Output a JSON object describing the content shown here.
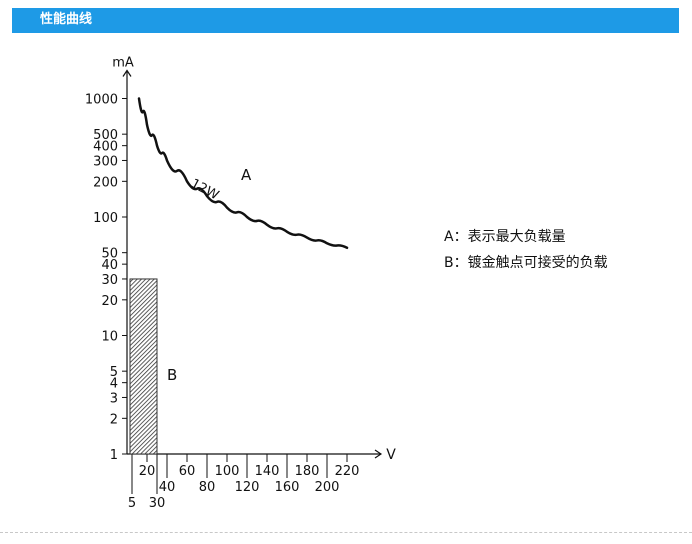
{
  "header": {
    "title": "性能曲线",
    "color": "#1e9ae6"
  },
  "legend": {
    "a": "A：表示最大负载量",
    "b": "B：镀金触点可接受的负载"
  },
  "chart_data": {
    "type": "line",
    "title": "",
    "xlabel": "V",
    "ylabel": "mA",
    "y_scale": "log",
    "ylim": [
      1,
      1000
    ],
    "xlim": [
      0,
      220
    ],
    "y_ticks": [
      1,
      2,
      3,
      4,
      5,
      10,
      20,
      30,
      40,
      50,
      100,
      200,
      300,
      400,
      500,
      1000
    ],
    "x_ticks_row1": [
      20,
      60,
      100,
      140,
      180,
      220
    ],
    "x_ticks_row2": [
      40,
      80,
      120,
      160,
      200
    ],
    "x_ticks_row3": [
      5,
      30
    ],
    "grid": false,
    "series": [
      {
        "name": "12W",
        "label": "A",
        "x": [
          12,
          20,
          30,
          40,
          60,
          80,
          100,
          120,
          140,
          160,
          180,
          200,
          220
        ],
        "y": [
          1000,
          600,
          400,
          300,
          200,
          150,
          120,
          100,
          86,
          75,
          67,
          60,
          55
        ]
      }
    ],
    "region": {
      "label": "B",
      "x": [
        5,
        30
      ],
      "y": [
        1,
        30
      ],
      "pattern": "hatched"
    }
  }
}
